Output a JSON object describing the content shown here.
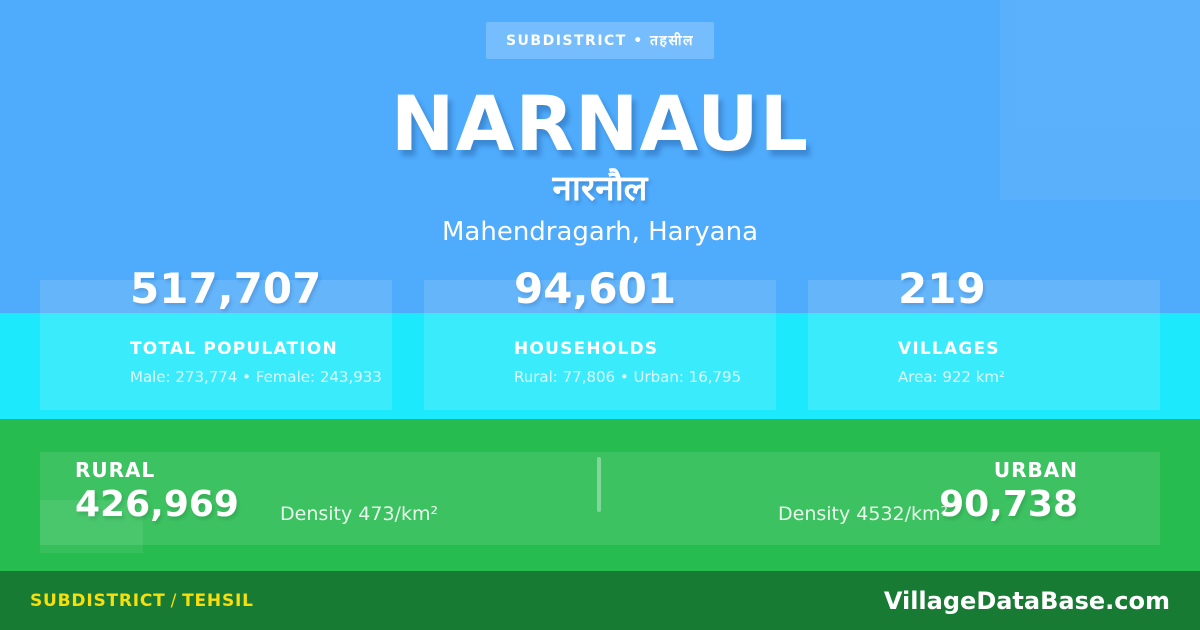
{
  "colors": {
    "background_blue": "#4fabfb",
    "cyan_band": "#1de9fc",
    "green_band": "#27bc50",
    "footer_green": "#187b34",
    "accent_yellow": "#f8de0b",
    "text_white": "#ffffff"
  },
  "badge": {
    "label": "SUBDISTRICT • तहसील"
  },
  "header": {
    "title": "NARNAUL",
    "title_hindi": "नारनौल",
    "location": "Mahendragarh, Haryana"
  },
  "stats": [
    {
      "value": "517,707",
      "label": "TOTAL POPULATION",
      "detail": "Male: 273,774 • Female: 243,933"
    },
    {
      "value": "94,601",
      "label": "HOUSEHOLDS",
      "detail": "Rural: 77,806 • Urban: 16,795"
    },
    {
      "value": "219",
      "label": "VILLAGES",
      "detail": "Area: 922 km²"
    }
  ],
  "rural_urban": {
    "rural": {
      "label": "RURAL",
      "value": "426,969",
      "density": "Density 473/km²"
    },
    "urban": {
      "label": "URBAN",
      "value": "90,738",
      "density": "Density 4532/km²"
    }
  },
  "footer": {
    "type_label": "SUBDISTRICT",
    "separator": "/",
    "type_label_alt": "TEHSIL",
    "site": "VillageDataBase.com"
  }
}
